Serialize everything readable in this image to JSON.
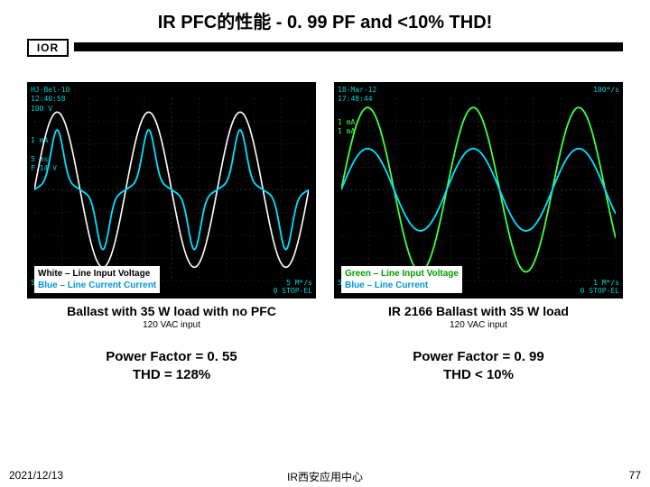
{
  "title": "IR PFC的性能 - 0. 99 PF and <10% THD!",
  "logo_text": "IOR",
  "scope_left": {
    "info_tl": "HJ-Bel-10\n12:40:58\n100 V",
    "info_left": "1 mA\n\n5 ms\nF.14 V",
    "bottom_left": "5 ms",
    "bottom_right": "5 M*/s\n0 STOP-EL",
    "wave_voltage_color": "#ffffff",
    "wave_current_color": "#00e0ff",
    "grid_color": "#203838",
    "voltage_series": {
      "type": "sine",
      "cycles": 3,
      "amplitude": 0.85,
      "phase": 0
    },
    "current_series": {
      "type": "distorted",
      "cycles": 3,
      "amplitude": 0.35,
      "spike_amplitude": 0.55
    }
  },
  "scope_right": {
    "info_tl": "18-Mar-12\n17:48:44",
    "info_mid": "1 mA\n1 mA",
    "info_right": "100*/s",
    "bottom_left": "5 ms",
    "bottom_right": "1 M*/s\n0 STOP-EL",
    "wave_voltage_color": "#40ff40",
    "wave_current_color": "#00e0ff",
    "grid_color": "#203838",
    "voltage_series": {
      "type": "sine",
      "cycles": 2.6,
      "amplitude": 0.9,
      "phase": 0
    },
    "current_series": {
      "type": "sine",
      "cycles": 2.6,
      "amplitude": 0.45,
      "phase": 0
    }
  },
  "legend_left": {
    "line1_label": "White – Line Input Voltage",
    "line2_label": "Blue – Line Current Current"
  },
  "legend_right": {
    "line1_label": "Green – Line Input Voltage",
    "line2_label": "Blue – Line Current"
  },
  "caption_left": {
    "main": "Ballast with 35 W load with no PFC",
    "sub": "120 VAC input",
    "pf": "Power Factor = 0. 55",
    "thd": "THD = 128%"
  },
  "caption_right": {
    "main": "IR 2166 Ballast with 35 W load",
    "sub": "120 VAC input",
    "pf": "Power Factor = 0. 99",
    "thd": "THD < 10%"
  },
  "footer": {
    "date": "2021/12/13",
    "center": "IR西安应用中心",
    "page": "77"
  }
}
